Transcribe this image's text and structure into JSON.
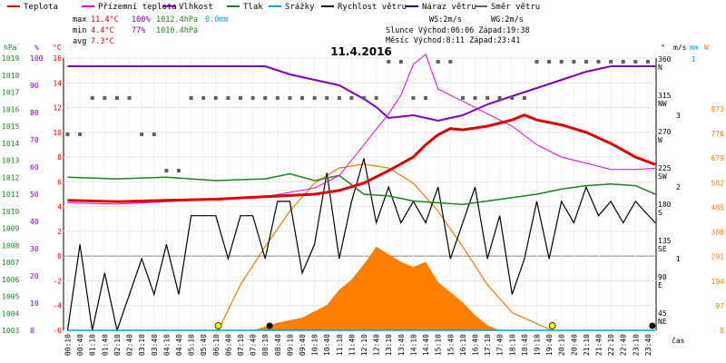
{
  "chart_data": {
    "type": "line",
    "title": "11.4.2016",
    "legend": [
      {
        "label": "Teplota",
        "color": "#e00000"
      },
      {
        "label": "Přízemní teplota",
        "color": "#e000e0"
      },
      {
        "label": "Vlhkost",
        "color": "#8000c0"
      },
      {
        "label": "Tlak",
        "color": "#208020"
      },
      {
        "label": "Srážky",
        "color": "#00a0e0"
      },
      {
        "label": "Rychlost větru",
        "color": "#000000"
      },
      {
        "label": "Náraz větru",
        "color": "#000080"
      },
      {
        "label": "Směr větru",
        "color": "#606060"
      }
    ],
    "stats": {
      "max_label": "max",
      "max_temp": "11.4°C",
      "max_hum": "100%",
      "max_press": "1012.4hPa",
      "max_rain": "0.0mm",
      "min_label": "min",
      "min_temp": "4.4°C",
      "min_hum": "77%",
      "min_press": "1010.4hPa",
      "avg_label": "avg",
      "avg_temp": "7.3°C",
      "ws": "WS:2m/s",
      "wg": "WG:2m/s",
      "sun": "Slunce Východ:06:06  Západ:19:38",
      "moon": "Měsíc  Východ:8:11  Západ:23:41"
    },
    "axes": {
      "hpa_unit": "hPa",
      "pct_unit": "%",
      "deg_unit": "°C",
      "wind_unit": "m/s",
      "mm_unit": "mm",
      "rad_unit": "W",
      "dir_unit": "°",
      "hpa": [
        "1019",
        "1018",
        "1017",
        "1016",
        "1015",
        "1014",
        "1013",
        "1012",
        "1011",
        "1010",
        "1009",
        "1008",
        "1007",
        "1006",
        "1005",
        "1004",
        "1003"
      ],
      "pct": [
        "100",
        "90",
        "80",
        "70",
        "60",
        "50",
        "40",
        "30",
        "20",
        "10",
        "0"
      ],
      "temp": [
        "16",
        "14",
        "12",
        "10",
        "8",
        "6",
        "4",
        "2",
        "0",
        "-2",
        "-4",
        "-6"
      ],
      "dir": [
        {
          "deg": "360",
          "name": "N"
        },
        {
          "deg": "315",
          "name": "NW"
        },
        {
          "deg": "270",
          "name": "W"
        },
        {
          "deg": "225",
          "name": "SW"
        },
        {
          "deg": "180",
          "name": "S"
        },
        {
          "deg": "135",
          "name": "SE"
        },
        {
          "deg": "90",
          "name": "E"
        },
        {
          "deg": "45",
          "name": "NE"
        }
      ],
      "wind": [
        "3",
        "2",
        "1"
      ],
      "mm": [
        "1"
      ],
      "rad": [
        "873",
        "776",
        "679",
        "582",
        "485",
        "388",
        "291",
        "194",
        "97",
        "0"
      ],
      "time_label": "čas",
      "times": [
        "00:10",
        "00:40",
        "01:10",
        "01:40",
        "02:10",
        "02:40",
        "03:10",
        "03:40",
        "04:10",
        "04:40",
        "05:10",
        "05:40",
        "06:10",
        "06:40",
        "07:10",
        "07:40",
        "08:10",
        "08:40",
        "09:10",
        "09:40",
        "10:10",
        "10:40",
        "11:10",
        "11:40",
        "12:10",
        "12:40",
        "13:10",
        "13:40",
        "14:10",
        "14:40",
        "15:10",
        "15:40",
        "16:10",
        "16:40",
        "17:10",
        "17:40",
        "18:10",
        "18:40",
        "19:10",
        "19:40",
        "20:10",
        "20:40",
        "21:10",
        "21:40",
        "22:10",
        "22:40",
        "23:10",
        "23:40"
      ]
    },
    "series": {
      "temperature": [
        [
          0,
          4.5
        ],
        [
          2,
          4.4
        ],
        [
          4,
          4.5
        ],
        [
          6,
          4.6
        ],
        [
          8,
          4.8
        ],
        [
          10,
          5.0
        ],
        [
          11,
          5.3
        ],
        [
          12,
          5.9
        ],
        [
          13,
          6.9
        ],
        [
          14,
          8.0
        ],
        [
          14.5,
          9.0
        ],
        [
          15,
          9.8
        ],
        [
          15.5,
          10.3
        ],
        [
          16,
          10.2
        ],
        [
          17,
          10.5
        ],
        [
          18,
          11.0
        ],
        [
          18.5,
          11.4
        ],
        [
          19,
          11.0
        ],
        [
          20,
          10.6
        ],
        [
          21,
          10.0
        ],
        [
          22,
          9.1
        ],
        [
          23,
          8.0
        ],
        [
          23.8,
          7.4
        ]
      ],
      "ground_temperature": [
        [
          0,
          4.3
        ],
        [
          2,
          4.2
        ],
        [
          4,
          4.4
        ],
        [
          6,
          4.6
        ],
        [
          8,
          4.8
        ],
        [
          10,
          5.5
        ],
        [
          11,
          6.5
        ],
        [
          12,
          9.0
        ],
        [
          13,
          11.5
        ],
        [
          13.5,
          13.0
        ],
        [
          14,
          15.5
        ],
        [
          14.5,
          16.3
        ],
        [
          15,
          13.5
        ],
        [
          15.5,
          13.0
        ],
        [
          16,
          12.5
        ],
        [
          17,
          11.5
        ],
        [
          18,
          10.5
        ],
        [
          19,
          9.0
        ],
        [
          20,
          8.0
        ],
        [
          21,
          7.5
        ],
        [
          22,
          7.0
        ],
        [
          23,
          7.0
        ],
        [
          23.8,
          7.1
        ]
      ],
      "humidity": [
        [
          0,
          97
        ],
        [
          2,
          97
        ],
        [
          4,
          97
        ],
        [
          6,
          97
        ],
        [
          8,
          97
        ],
        [
          9,
          94
        ],
        [
          10,
          92
        ],
        [
          11,
          90
        ],
        [
          12,
          85
        ],
        [
          12.5,
          82
        ],
        [
          13,
          78
        ],
        [
          14,
          79
        ],
        [
          15,
          77
        ],
        [
          16,
          79
        ],
        [
          17,
          83
        ],
        [
          18,
          86
        ],
        [
          19,
          89
        ],
        [
          20,
          92
        ],
        [
          21,
          95
        ],
        [
          22,
          97
        ],
        [
          23,
          97
        ],
        [
          23.8,
          97
        ]
      ],
      "pressure": [
        [
          0,
          1012.0
        ],
        [
          2,
          1011.9
        ],
        [
          4,
          1012.0
        ],
        [
          6,
          1011.8
        ],
        [
          8,
          1011.9
        ],
        [
          9,
          1012.2
        ],
        [
          10,
          1011.8
        ],
        [
          11,
          1012.1
        ],
        [
          12,
          1011.0
        ],
        [
          13,
          1010.9
        ],
        [
          14,
          1010.6
        ],
        [
          15,
          1010.5
        ],
        [
          16,
          1010.4
        ],
        [
          17,
          1010.6
        ],
        [
          18,
          1010.8
        ],
        [
          19,
          1011.0
        ],
        [
          20,
          1011.3
        ],
        [
          21,
          1011.5
        ],
        [
          22,
          1011.6
        ],
        [
          23,
          1011.5
        ],
        [
          23.8,
          1011.0
        ]
      ],
      "wind_speed": [
        [
          0,
          0
        ],
        [
          0.5,
          1.2
        ],
        [
          1,
          0
        ],
        [
          1.5,
          0.8
        ],
        [
          2,
          0
        ],
        [
          2.5,
          0.5
        ],
        [
          3,
          1.0
        ],
        [
          3.5,
          0.5
        ],
        [
          4,
          1.2
        ],
        [
          4.5,
          0.5
        ],
        [
          5,
          1.6
        ],
        [
          6,
          1.6
        ],
        [
          6.5,
          1.0
        ],
        [
          7,
          1.6
        ],
        [
          7.5,
          1.6
        ],
        [
          8,
          1.0
        ],
        [
          8.5,
          1.8
        ],
        [
          9,
          1.8
        ],
        [
          9.5,
          0.8
        ],
        [
          10,
          1.2
        ],
        [
          10.5,
          2.2
        ],
        [
          11,
          1.0
        ],
        [
          11.5,
          1.8
        ],
        [
          12,
          2.4
        ],
        [
          12.5,
          1.5
        ],
        [
          13,
          2.0
        ],
        [
          13.5,
          1.5
        ],
        [
          14,
          1.8
        ],
        [
          14.5,
          1.5
        ],
        [
          15,
          2.0
        ],
        [
          15.5,
          1.0
        ],
        [
          16,
          1.5
        ],
        [
          16.5,
          2.0
        ],
        [
          17,
          1.0
        ],
        [
          17.5,
          1.6
        ],
        [
          18,
          0.5
        ],
        [
          18.5,
          1.0
        ],
        [
          19,
          1.8
        ],
        [
          19.5,
          1.0
        ],
        [
          20,
          1.8
        ],
        [
          20.5,
          1.5
        ],
        [
          21,
          2.0
        ],
        [
          21.5,
          1.6
        ],
        [
          22,
          1.8
        ],
        [
          22.5,
          1.5
        ],
        [
          23,
          1.8
        ],
        [
          23.8,
          1.5
        ]
      ],
      "wind_gust": [
        [
          0,
          0
        ]
      ],
      "rain": [
        [
          0,
          0
        ],
        [
          23.8,
          0
        ]
      ],
      "solar_radiation": [
        [
          7.5,
          0
        ],
        [
          8.5,
          30
        ],
        [
          9.5,
          50
        ],
        [
          10.5,
          100
        ],
        [
          11,
          160
        ],
        [
          11.5,
          200
        ],
        [
          12,
          260
        ],
        [
          12.5,
          330
        ],
        [
          13,
          300
        ],
        [
          13.5,
          270
        ],
        [
          14,
          250
        ],
        [
          14.5,
          270
        ],
        [
          15,
          190
        ],
        [
          15.5,
          150
        ],
        [
          16,
          110
        ],
        [
          16.5,
          60
        ],
        [
          17,
          20
        ],
        [
          17.5,
          0
        ]
      ],
      "wind_direction": [
        [
          0,
          270
        ],
        [
          1,
          315
        ],
        [
          2,
          315
        ],
        [
          3,
          270
        ],
        [
          4,
          225
        ],
        [
          5,
          315
        ],
        [
          6,
          315
        ],
        [
          7,
          315
        ],
        [
          8,
          315
        ],
        [
          9,
          315
        ],
        [
          10,
          315
        ],
        [
          11,
          315
        ],
        [
          12,
          315
        ],
        [
          13,
          360
        ],
        [
          14,
          315
        ],
        [
          15,
          360
        ],
        [
          16,
          315
        ],
        [
          17,
          315
        ],
        [
          18,
          315
        ],
        [
          19,
          360
        ],
        [
          20,
          360
        ],
        [
          21,
          360
        ],
        [
          22,
          360
        ],
        [
          23,
          360
        ]
      ],
      "theoretical_radiation": [
        [
          6.1,
          0
        ],
        [
          7,
          180
        ],
        [
          8,
          330
        ],
        [
          9,
          470
        ],
        [
          10,
          580
        ],
        [
          11,
          640
        ],
        [
          12,
          655
        ],
        [
          13,
          640
        ],
        [
          14,
          580
        ],
        [
          15,
          470
        ],
        [
          16,
          330
        ],
        [
          17,
          180
        ],
        [
          18,
          70
        ],
        [
          19.6,
          0
        ]
      ]
    }
  }
}
